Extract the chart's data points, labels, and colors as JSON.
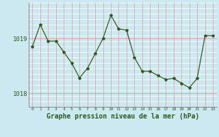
{
  "x": [
    0,
    1,
    2,
    3,
    4,
    5,
    6,
    7,
    8,
    9,
    10,
    11,
    12,
    13,
    14,
    15,
    16,
    17,
    18,
    19,
    20,
    21,
    22,
    23
  ],
  "y": [
    1018.85,
    1019.25,
    1018.95,
    1018.95,
    1018.75,
    1018.55,
    1018.28,
    1018.45,
    1018.72,
    1019.0,
    1019.42,
    1019.17,
    1019.15,
    1018.65,
    1018.4,
    1018.4,
    1018.32,
    1018.25,
    1018.27,
    1018.18,
    1018.1,
    1018.27,
    1019.05,
    1019.05
  ],
  "line_color": "#2d5a1b",
  "marker": "*",
  "marker_size": 3,
  "background_color": "#cce8f0",
  "plot_bg_color": "#cce8f0",
  "grid_color_v": "#e8a0a0",
  "grid_color_h": "#e8a0a0",
  "grid_color_minor": "#ffffff",
  "xlabel": "Graphe pression niveau de la mer (hPa)",
  "xlabel_fontsize": 7,
  "ytick_labels": [
    "1018",
    "1019"
  ],
  "ytick_values": [
    1018.0,
    1019.0
  ],
  "ylim": [
    1017.75,
    1019.65
  ],
  "xlim": [
    -0.5,
    23.5
  ],
  "xtick_labels": [
    "0",
    "1",
    "2",
    "3",
    "4",
    "5",
    "6",
    "7",
    "8",
    "9",
    "10",
    "11",
    "12",
    "13",
    "14",
    "15",
    "16",
    "17",
    "18",
    "19",
    "20",
    "21",
    "22",
    "23"
  ]
}
